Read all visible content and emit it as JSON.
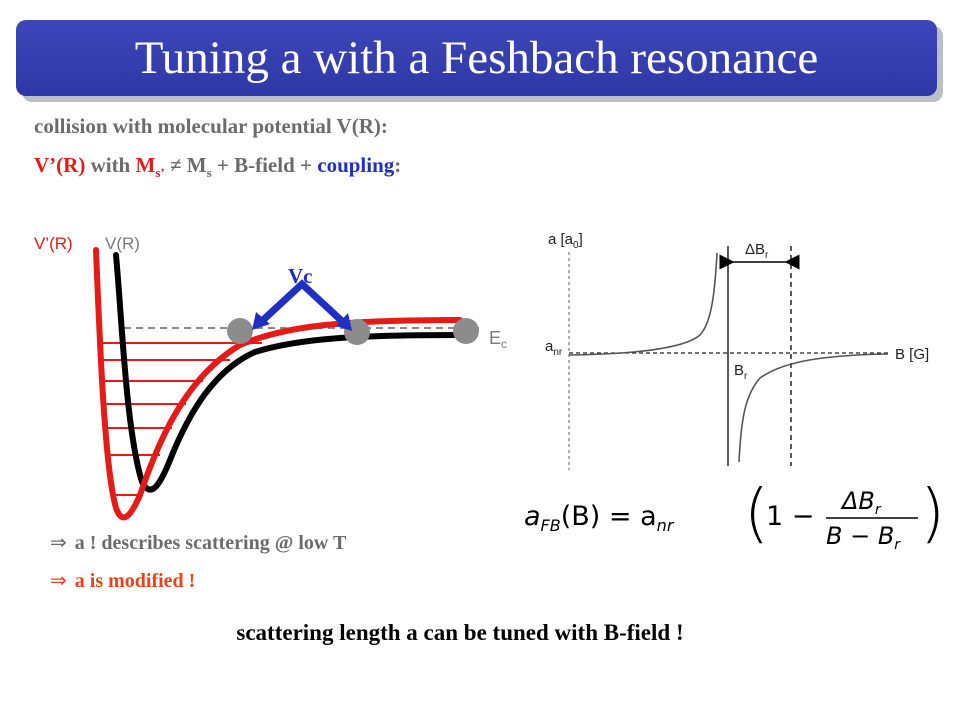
{
  "slide": {
    "title": "Tuning a with a Feshbach resonance",
    "line1": "collision with molecular potential V(R):",
    "line2": {
      "vprime": "V’(R)",
      "with": " with ",
      "ms_prime_base": "M",
      "ms_prime_sub": "s’",
      "neq": " ≠ M",
      "ms_sub": "s",
      "bfield": " + B-field   + ",
      "coupling": "coupling",
      "colon": ":"
    },
    "conclusion1": "a ! describes scattering @ low T",
    "conclusion2": "a is modified !",
    "conclusion_arrow": "⇒",
    "bottom_line": "scattering length a can be tuned with B-field !"
  },
  "potential_plot": {
    "label_vprime": "V’(R)",
    "label_v": "V(R)",
    "label_vc": "Vc",
    "label_ec_main": "E",
    "label_ec_sub": "c"
  },
  "resonance_plot": {
    "ylabel_main": "a [a",
    "ylabel_sub": "0",
    "ylabel_close": "]",
    "xlabel": "B [G]",
    "anr_main": "a",
    "anr_sub": "nr",
    "br_main": "B",
    "br_sub": "r",
    "delta_main": "ΔB",
    "delta_sub": "r"
  },
  "formula": {
    "lhs_a": "a",
    "lhs_sub": "FB",
    "lhs_arg": "(B) = a",
    "rhs_sub": "nr",
    "one_minus": "1 −",
    "numerator": "ΔB",
    "numerator_sub": "r",
    "denominator": "B − B",
    "denominator_sub": "r"
  },
  "colors": {
    "title_bg": "#3040b0",
    "accent_red": "#e41b17",
    "accent_blue": "#1f2fc4",
    "text_gray": "#6b6b6b",
    "conclusion_orange": "#e8431a"
  }
}
